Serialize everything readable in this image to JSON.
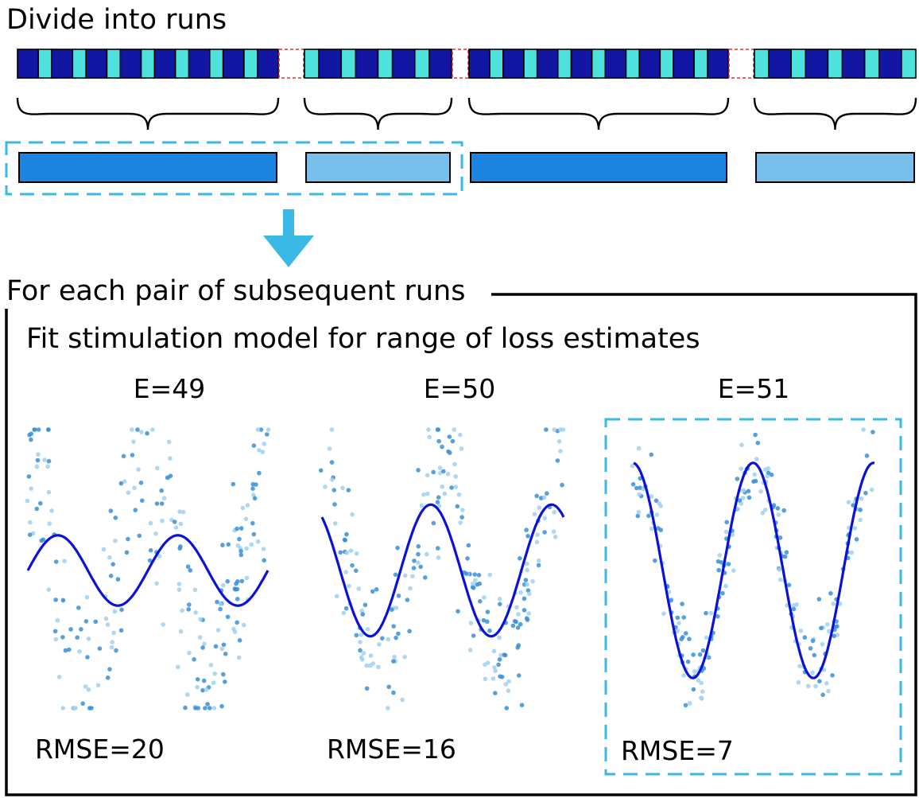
{
  "section_top": {
    "title": "Divide into runs"
  },
  "section_bottom": {
    "title": "For each pair of subsequent runs",
    "subtitle": "Fit stimulation model for range of loss estimates"
  },
  "colors": {
    "dark_block": "#1216a3",
    "light_block": "#4de3dc",
    "gap_marker": "#e0302a",
    "run_dark": "#1b83e0",
    "run_light": "#78bfec",
    "highlight": "#3ab8e6",
    "fit_curve": "#0b11d8",
    "point_dark": "#3a8fd6",
    "point_light": "#9fd0f0"
  },
  "runs": [
    {
      "shade": "dark",
      "selected": true,
      "blocks": [
        "dark",
        "light",
        "dark",
        "light",
        "dark",
        "light",
        "dark",
        "light",
        "dark",
        "light",
        "dark",
        "light",
        "dark",
        "light",
        "dark"
      ]
    },
    {
      "shade": "light",
      "selected": true,
      "blocks": [
        "light",
        "dark",
        "light",
        "dark",
        "light",
        "dark",
        "light",
        "dark"
      ]
    },
    {
      "shade": "dark",
      "selected": false,
      "blocks": [
        "dark",
        "light",
        "dark",
        "light",
        "dark",
        "light",
        "dark",
        "light",
        "dark",
        "light",
        "dark",
        "light",
        "dark",
        "light",
        "dark"
      ]
    },
    {
      "shade": "light",
      "selected": false,
      "blocks": [
        "light",
        "dark",
        "light",
        "dark",
        "light",
        "dark",
        "light",
        "dark",
        "light"
      ]
    }
  ],
  "panels": [
    {
      "label": "E=49",
      "rmse": "RMSE=20",
      "amplitude": 0.32,
      "selected": false
    },
    {
      "label": "E=50",
      "rmse": "RMSE=16",
      "amplitude": 0.6,
      "selected": false
    },
    {
      "label": "E=51",
      "rmse": "RMSE=7",
      "amplitude": 0.98,
      "selected": true
    }
  ]
}
